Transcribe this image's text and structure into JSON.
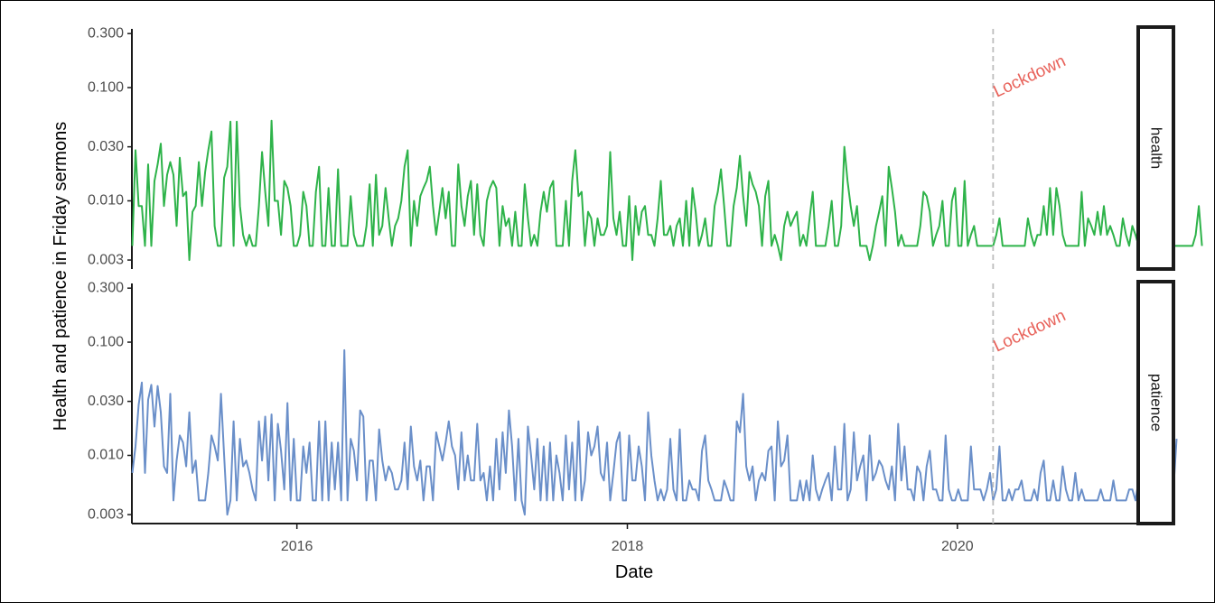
{
  "chart_data": {
    "type": "line",
    "xlabel": "Date",
    "ylabel": "Health and patience in Friday sermons",
    "y_scale": "log10",
    "ylim": [
      0.0025,
      0.33
    ],
    "xlim": [
      "2015-01-01",
      "2021-01-31"
    ],
    "x_ticks": [
      "2016",
      "2018",
      "2020"
    ],
    "y_ticks": [
      "0.003",
      "0.010",
      "0.030",
      "0.100",
      "0.300"
    ],
    "grid": false,
    "annotation": {
      "label": "Lockdown",
      "x": "2020-03-20",
      "line_color": "#bdbdbd",
      "text_color": "#e8625a"
    },
    "facets": [
      {
        "strip_label": "health",
        "color": "#2eb34a",
        "x_start": "2015-01-02",
        "x_step_days": 7,
        "values": [
          0.004,
          0.028,
          0.009,
          0.009,
          0.004,
          0.021,
          0.004,
          0.015,
          0.021,
          0.032,
          0.009,
          0.017,
          0.022,
          0.017,
          0.006,
          0.024,
          0.011,
          0.012,
          0.003,
          0.008,
          0.009,
          0.022,
          0.009,
          0.018,
          0.028,
          0.041,
          0.006,
          0.004,
          0.004,
          0.016,
          0.02,
          0.05,
          0.004,
          0.05,
          0.009,
          0.005,
          0.004,
          0.005,
          0.004,
          0.004,
          0.009,
          0.027,
          0.012,
          0.006,
          0.051,
          0.01,
          0.01,
          0.005,
          0.015,
          0.013,
          0.009,
          0.004,
          0.004,
          0.005,
          0.012,
          0.009,
          0.004,
          0.004,
          0.012,
          0.02,
          0.004,
          0.004,
          0.013,
          0.004,
          0.004,
          0.019,
          0.004,
          0.004,
          0.004,
          0.011,
          0.005,
          0.004,
          0.004,
          0.004,
          0.006,
          0.014,
          0.004,
          0.017,
          0.005,
          0.006,
          0.013,
          0.007,
          0.004,
          0.006,
          0.007,
          0.01,
          0.02,
          0.028,
          0.004,
          0.01,
          0.006,
          0.011,
          0.013,
          0.015,
          0.02,
          0.009,
          0.005,
          0.008,
          0.013,
          0.007,
          0.012,
          0.004,
          0.004,
          0.021,
          0.009,
          0.006,
          0.011,
          0.015,
          0.005,
          0.014,
          0.005,
          0.004,
          0.01,
          0.013,
          0.015,
          0.013,
          0.004,
          0.009,
          0.006,
          0.007,
          0.004,
          0.008,
          0.004,
          0.004,
          0.014,
          0.007,
          0.004,
          0.005,
          0.004,
          0.008,
          0.012,
          0.008,
          0.013,
          0.015,
          0.004,
          0.004,
          0.004,
          0.01,
          0.004,
          0.015,
          0.028,
          0.011,
          0.012,
          0.004,
          0.008,
          0.007,
          0.004,
          0.007,
          0.005,
          0.005,
          0.006,
          0.027,
          0.007,
          0.005,
          0.008,
          0.004,
          0.004,
          0.011,
          0.003,
          0.009,
          0.005,
          0.008,
          0.009,
          0.005,
          0.005,
          0.004,
          0.007,
          0.015,
          0.005,
          0.005,
          0.006,
          0.004,
          0.006,
          0.007,
          0.004,
          0.01,
          0.004,
          0.013,
          0.008,
          0.004,
          0.005,
          0.007,
          0.004,
          0.004,
          0.009,
          0.012,
          0.019,
          0.009,
          0.004,
          0.004,
          0.009,
          0.013,
          0.025,
          0.011,
          0.006,
          0.018,
          0.014,
          0.012,
          0.009,
          0.004,
          0.011,
          0.015,
          0.004,
          0.005,
          0.004,
          0.003,
          0.006,
          0.008,
          0.006,
          0.007,
          0.008,
          0.004,
          0.005,
          0.004,
          0.007,
          0.012,
          0.004,
          0.004,
          0.004,
          0.004,
          0.006,
          0.01,
          0.004,
          0.004,
          0.006,
          0.03,
          0.015,
          0.009,
          0.006,
          0.009,
          0.004,
          0.004,
          0.004,
          0.003,
          0.004,
          0.006,
          0.008,
          0.011,
          0.004,
          0.02,
          0.013,
          0.008,
          0.004,
          0.005,
          0.004,
          0.004,
          0.004,
          0.004,
          0.004,
          0.006,
          0.012,
          0.011,
          0.008,
          0.004,
          0.005,
          0.006,
          0.01,
          0.004,
          0.004,
          0.01,
          0.013,
          0.004,
          0.004,
          0.015,
          0.004,
          0.005,
          0.006,
          0.004,
          0.004,
          0.004,
          0.004,
          0.004,
          0.004,
          0.005,
          0.007,
          0.004,
          0.004,
          0.004,
          0.004,
          0.004,
          0.004,
          0.004,
          0.004,
          0.007,
          0.005,
          0.004,
          0.005,
          0.005,
          0.009,
          0.005,
          0.013,
          0.005,
          0.013,
          0.009,
          0.005,
          0.004,
          0.004,
          0.004,
          0.004,
          0.004,
          0.012,
          0.004,
          0.007,
          0.006,
          0.005,
          0.008,
          0.005,
          0.009,
          0.005,
          0.006,
          0.005,
          0.004,
          0.004,
          0.007,
          0.005,
          0.004,
          0.006,
          0.005,
          0.004,
          0.004,
          0.004,
          0.004,
          0.004,
          0.006,
          0.004,
          0.004,
          0.006,
          0.004,
          0.006,
          0.004,
          0.004,
          0.004,
          0.004,
          0.004,
          0.004,
          0.004,
          0.005,
          0.009,
          0.004
        ]
      },
      {
        "strip_label": "patience",
        "color": "#6a8fc9",
        "x_start": "2015-01-02",
        "x_step_days": 7,
        "values": [
          0.007,
          0.012,
          0.028,
          0.044,
          0.007,
          0.031,
          0.042,
          0.018,
          0.041,
          0.024,
          0.008,
          0.007,
          0.035,
          0.004,
          0.009,
          0.015,
          0.013,
          0.008,
          0.024,
          0.007,
          0.009,
          0.004,
          0.004,
          0.004,
          0.007,
          0.015,
          0.012,
          0.009,
          0.035,
          0.01,
          0.003,
          0.004,
          0.02,
          0.004,
          0.014,
          0.008,
          0.009,
          0.007,
          0.005,
          0.004,
          0.02,
          0.009,
          0.022,
          0.006,
          0.023,
          0.004,
          0.019,
          0.011,
          0.005,
          0.029,
          0.004,
          0.014,
          0.004,
          0.004,
          0.012,
          0.007,
          0.013,
          0.004,
          0.004,
          0.02,
          0.004,
          0.02,
          0.004,
          0.013,
          0.005,
          0.013,
          0.004,
          0.085,
          0.004,
          0.014,
          0.011,
          0.006,
          0.025,
          0.022,
          0.004,
          0.009,
          0.009,
          0.004,
          0.017,
          0.009,
          0.006,
          0.008,
          0.007,
          0.005,
          0.005,
          0.006,
          0.013,
          0.005,
          0.018,
          0.008,
          0.006,
          0.009,
          0.004,
          0.008,
          0.008,
          0.004,
          0.016,
          0.012,
          0.009,
          0.013,
          0.02,
          0.012,
          0.01,
          0.005,
          0.016,
          0.006,
          0.01,
          0.006,
          0.006,
          0.019,
          0.006,
          0.007,
          0.004,
          0.008,
          0.004,
          0.014,
          0.005,
          0.016,
          0.007,
          0.025,
          0.012,
          0.004,
          0.014,
          0.004,
          0.003,
          0.018,
          0.01,
          0.005,
          0.014,
          0.004,
          0.012,
          0.004,
          0.013,
          0.004,
          0.01,
          0.007,
          0.004,
          0.015,
          0.005,
          0.013,
          0.004,
          0.02,
          0.004,
          0.006,
          0.016,
          0.01,
          0.012,
          0.018,
          0.007,
          0.006,
          0.013,
          0.004,
          0.007,
          0.013,
          0.016,
          0.004,
          0.004,
          0.015,
          0.006,
          0.006,
          0.012,
          0.008,
          0.004,
          0.024,
          0.01,
          0.006,
          0.004,
          0.005,
          0.004,
          0.005,
          0.014,
          0.005,
          0.004,
          0.017,
          0.004,
          0.004,
          0.006,
          0.005,
          0.005,
          0.004,
          0.011,
          0.015,
          0.006,
          0.005,
          0.004,
          0.004,
          0.004,
          0.006,
          0.005,
          0.004,
          0.004,
          0.02,
          0.016,
          0.035,
          0.008,
          0.006,
          0.008,
          0.004,
          0.006,
          0.007,
          0.006,
          0.011,
          0.012,
          0.004,
          0.02,
          0.008,
          0.009,
          0.015,
          0.004,
          0.004,
          0.004,
          0.006,
          0.004,
          0.006,
          0.004,
          0.01,
          0.005,
          0.004,
          0.005,
          0.006,
          0.007,
          0.004,
          0.012,
          0.005,
          0.005,
          0.019,
          0.004,
          0.005,
          0.016,
          0.006,
          0.008,
          0.01,
          0.004,
          0.015,
          0.006,
          0.007,
          0.009,
          0.008,
          0.006,
          0.005,
          0.008,
          0.004,
          0.019,
          0.006,
          0.012,
          0.005,
          0.005,
          0.004,
          0.008,
          0.007,
          0.004,
          0.008,
          0.011,
          0.005,
          0.005,
          0.004,
          0.004,
          0.015,
          0.005,
          0.004,
          0.004,
          0.005,
          0.004,
          0.004,
          0.004,
          0.012,
          0.005,
          0.005,
          0.005,
          0.004,
          0.005,
          0.007,
          0.004,
          0.005,
          0.012,
          0.004,
          0.004,
          0.005,
          0.004,
          0.005,
          0.005,
          0.006,
          0.004,
          0.004,
          0.004,
          0.005,
          0.004,
          0.007,
          0.009,
          0.004,
          0.004,
          0.006,
          0.004,
          0.004,
          0.008,
          0.005,
          0.004,
          0.004,
          0.007,
          0.004,
          0.005,
          0.004,
          0.004,
          0.004,
          0.004,
          0.004,
          0.005,
          0.004,
          0.004,
          0.004,
          0.006,
          0.004,
          0.004,
          0.004,
          0.004,
          0.005,
          0.005,
          0.004,
          0.006,
          0.004,
          0.004,
          0.004,
          0.004,
          0.004,
          0.006,
          0.004,
          0.005,
          0.004,
          0.004,
          0.005,
          0.014
        ]
      }
    ]
  }
}
